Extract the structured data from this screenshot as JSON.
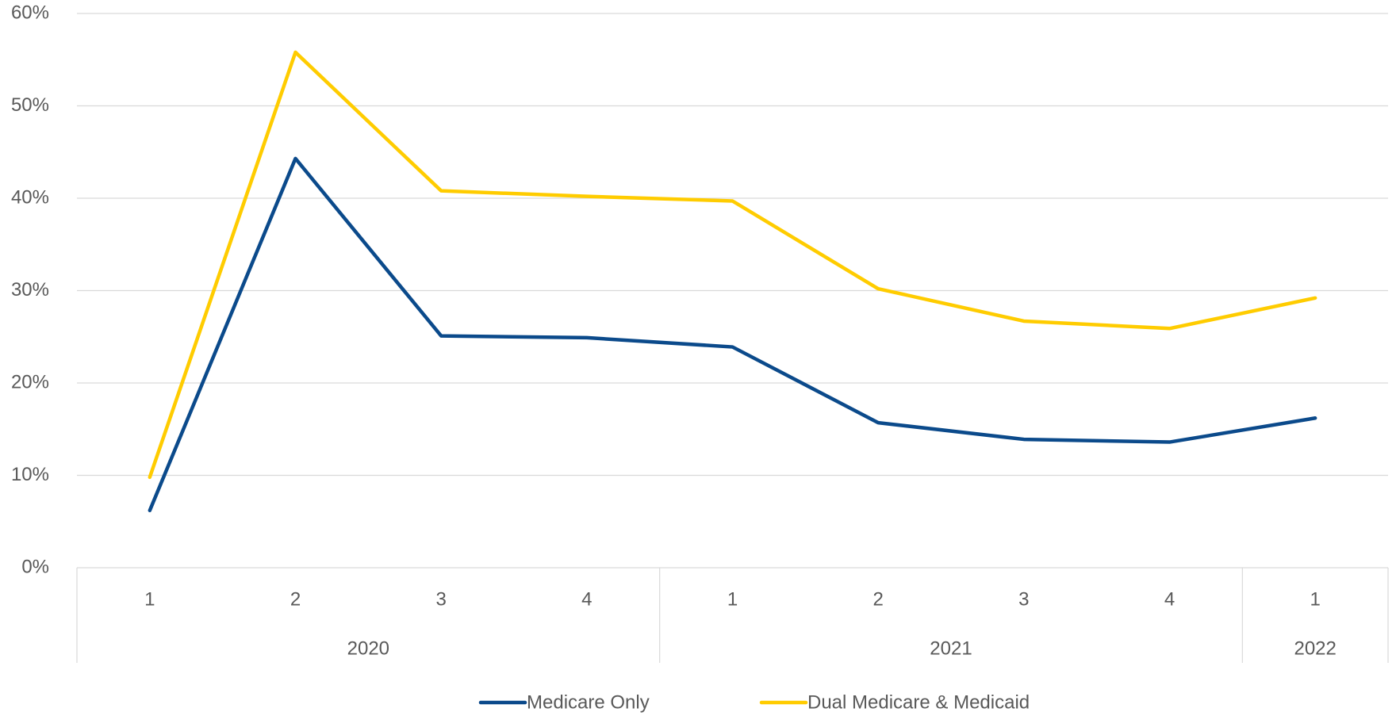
{
  "chart_data": {
    "type": "line",
    "categories": [
      "1",
      "2",
      "3",
      "4",
      "1",
      "2",
      "3",
      "4",
      "1"
    ],
    "category_groups": [
      {
        "name": "2020",
        "count": 4
      },
      {
        "name": "2021",
        "count": 4
      },
      {
        "name": "2022",
        "count": 1
      }
    ],
    "series": [
      {
        "name": "Medicare Only",
        "color": "#0b4a8b",
        "values": [
          6.2,
          44.3,
          25.1,
          24.9,
          23.9,
          15.7,
          13.9,
          13.6,
          16.2
        ]
      },
      {
        "name": "Dual Medicare & Medicaid",
        "color": "#ffcc00",
        "values": [
          9.8,
          55.8,
          40.8,
          40.2,
          39.7,
          30.2,
          26.7,
          25.9,
          29.2
        ]
      }
    ],
    "ylim": [
      0,
      60
    ],
    "yticks": [
      {
        "value": 0,
        "label": "0%"
      },
      {
        "value": 10,
        "label": "10%"
      },
      {
        "value": 20,
        "label": "20%"
      },
      {
        "value": 30,
        "label": "30%"
      },
      {
        "value": 40,
        "label": "40%"
      },
      {
        "value": 50,
        "label": "50%"
      },
      {
        "value": 60,
        "label": "60%"
      }
    ],
    "grid": true,
    "legend": "bottom"
  }
}
